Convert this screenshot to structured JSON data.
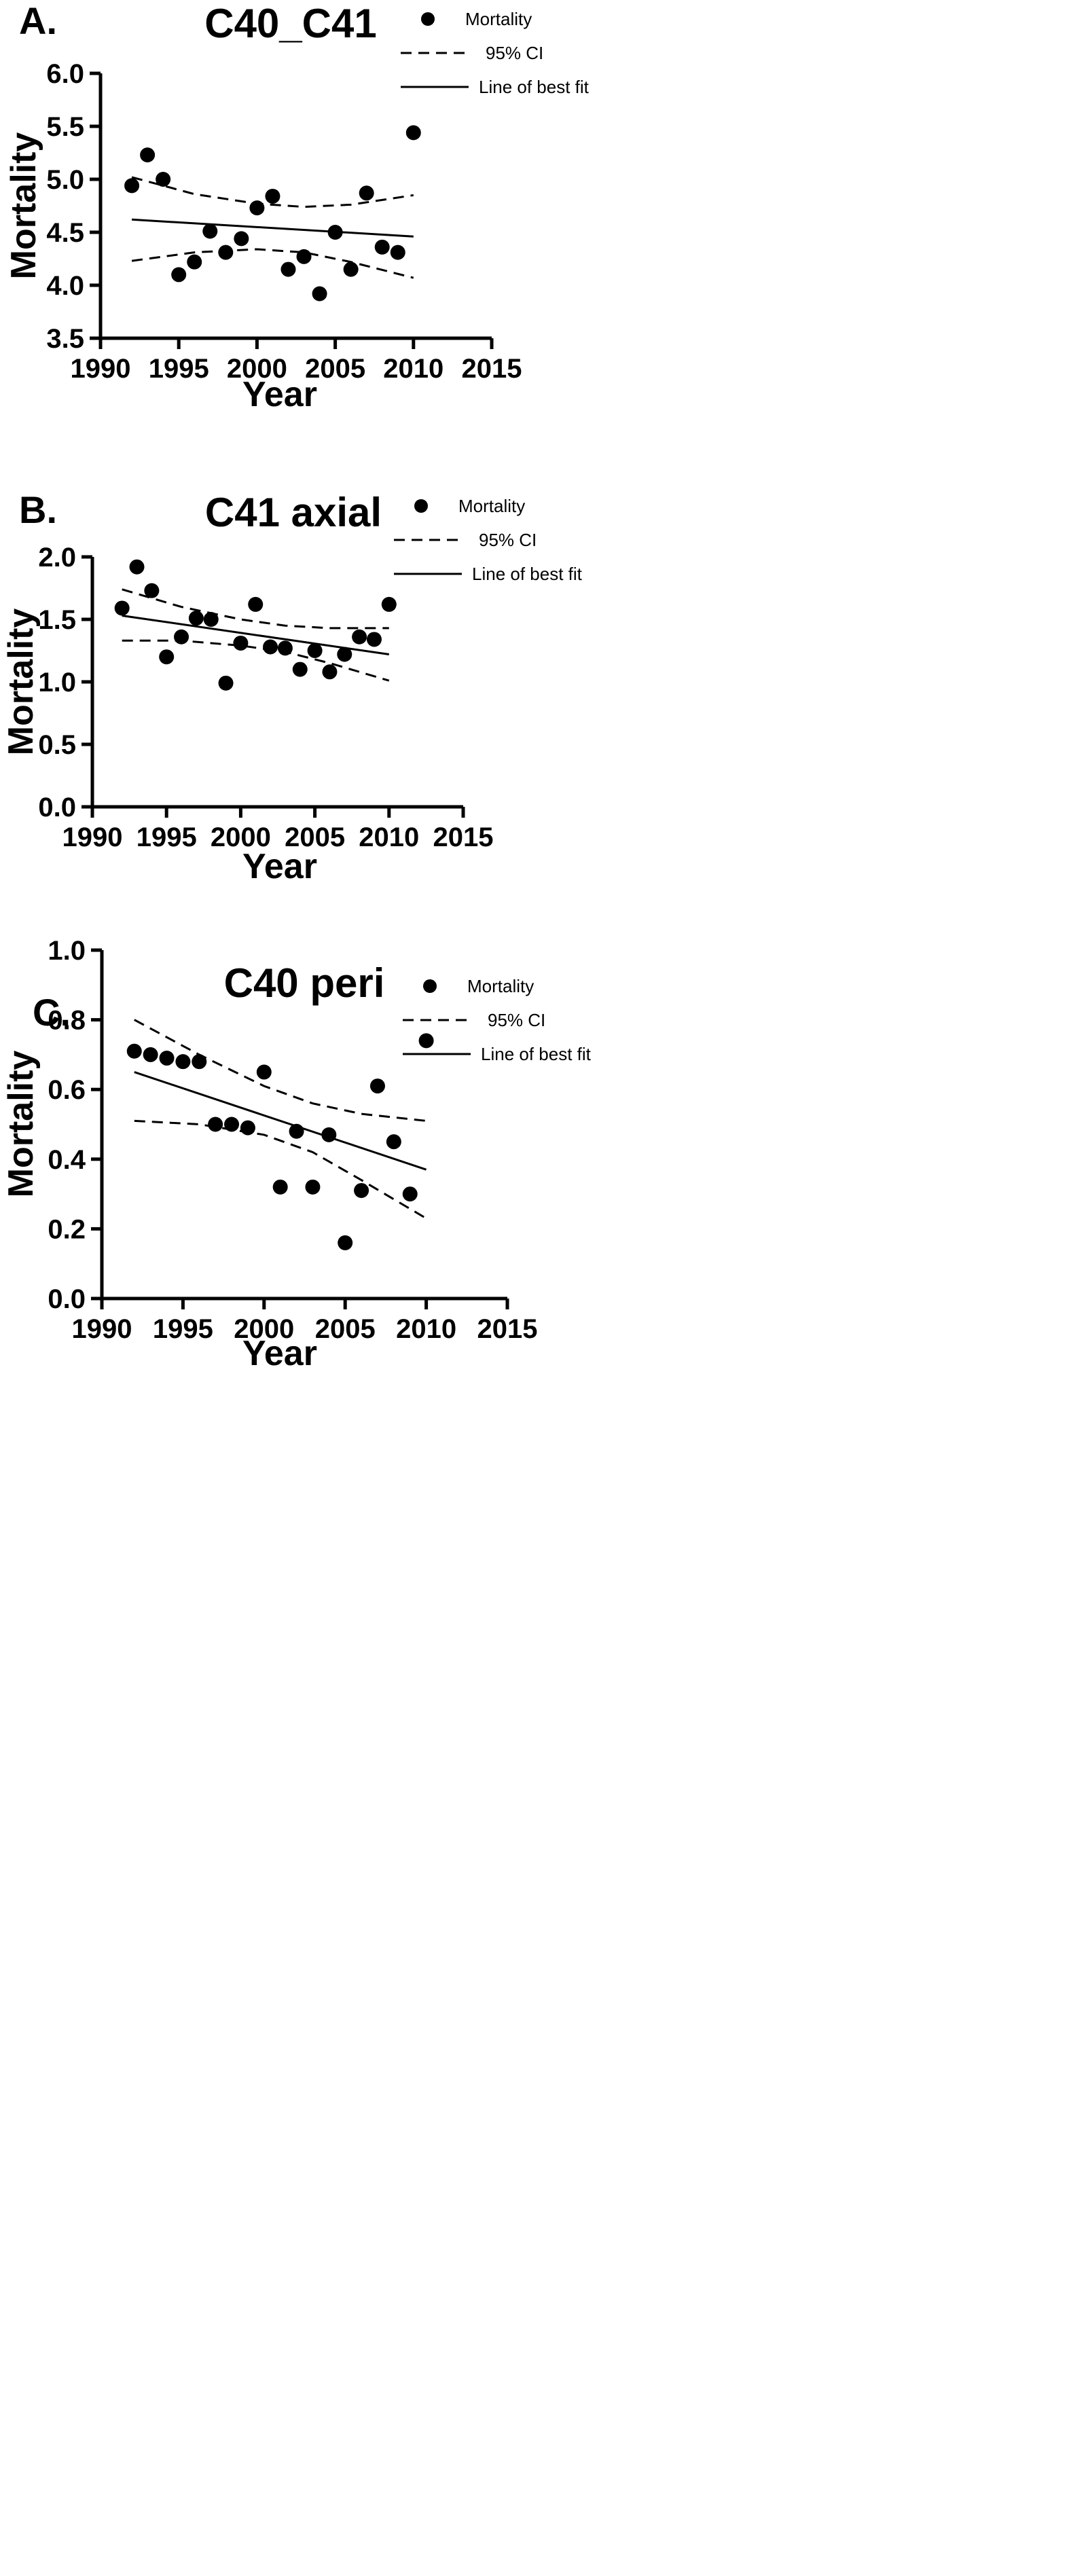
{
  "chart_data": [
    {
      "type": "scatter",
      "panel_label": "A.",
      "title": "C40_C41",
      "xlabel": "Year",
      "ylabel": "Mortality",
      "xlim": [
        1990,
        2015
      ],
      "ylim": [
        3.5,
        6.0
      ],
      "x_ticks": [
        1990,
        1995,
        2000,
        2005,
        2010,
        2015
      ],
      "y_ticks": [
        "3.5",
        "4.0",
        "4.5",
        "5.0",
        "5.5",
        "6.0"
      ],
      "legend": {
        "mortality": "Mortality",
        "ci": "95% CI",
        "fit": "Line of best fit",
        "position": "top-right"
      },
      "points": {
        "x": [
          1992,
          1993,
          1994,
          1995,
          1996,
          1997,
          1998,
          1999,
          2000,
          2001,
          2002,
          2003,
          2004,
          2005,
          2006,
          2007,
          2008,
          2009,
          2010
        ],
        "y": [
          4.94,
          5.23,
          5.0,
          4.1,
          4.22,
          4.51,
          4.31,
          4.44,
          4.73,
          4.84,
          4.15,
          4.27,
          3.92,
          4.5,
          4.15,
          4.87,
          4.36,
          4.31,
          5.44
        ]
      },
      "fit": {
        "x": [
          1992,
          2010
        ],
        "y": [
          4.62,
          4.46
        ]
      },
      "ci_upper": {
        "x": [
          1992,
          1996,
          2000,
          2003,
          2006,
          2010
        ],
        "y": [
          5.02,
          4.86,
          4.77,
          4.74,
          4.76,
          4.85
        ]
      },
      "ci_lower": {
        "x": [
          1992,
          1996,
          2000,
          2003,
          2006,
          2010
        ],
        "y": [
          4.23,
          4.31,
          4.34,
          4.31,
          4.22,
          4.07
        ]
      }
    },
    {
      "type": "scatter",
      "panel_label": "B.",
      "title": "C41 axial",
      "xlabel": "Year",
      "ylabel": "Mortality",
      "xlim": [
        1990,
        2015
      ],
      "ylim": [
        0.0,
        2.0
      ],
      "x_ticks": [
        1990,
        1995,
        2000,
        2005,
        2010,
        2015
      ],
      "y_ticks": [
        "0.0",
        "0.5",
        "1.0",
        "1.5",
        "2.0"
      ],
      "legend": {
        "mortality": "Mortality",
        "ci": "95% CI",
        "fit": "Line of best fit",
        "position": "top-right"
      },
      "points": {
        "x": [
          1992,
          1993,
          1994,
          1995,
          1996,
          1997,
          1998,
          1999,
          2000,
          2001,
          2002,
          2003,
          2004,
          2005,
          2006,
          2007,
          2008,
          2009,
          2010
        ],
        "y": [
          1.59,
          1.92,
          1.73,
          1.2,
          1.36,
          1.51,
          1.5,
          0.99,
          1.31,
          1.62,
          1.28,
          1.27,
          1.1,
          1.25,
          1.08,
          1.22,
          1.36,
          1.34,
          1.62
        ]
      },
      "fit": {
        "x": [
          1992,
          2010
        ],
        "y": [
          1.53,
          1.22
        ]
      },
      "ci_upper": {
        "x": [
          1992,
          1996,
          2000,
          2003,
          2006,
          2010
        ],
        "y": [
          1.74,
          1.6,
          1.5,
          1.45,
          1.43,
          1.43
        ]
      },
      "ci_lower": {
        "x": [
          1992,
          1996,
          2000,
          2003,
          2006,
          2010
        ],
        "y": [
          1.33,
          1.33,
          1.29,
          1.24,
          1.15,
          1.01
        ]
      }
    },
    {
      "type": "scatter",
      "panel_label": "C.",
      "title": "C40 peri",
      "xlabel": "Year",
      "ylabel": "Mortality",
      "xlim": [
        1990,
        2015
      ],
      "ylim": [
        0.0,
        1.0
      ],
      "x_ticks": [
        1990,
        1995,
        2000,
        2005,
        2010,
        2015
      ],
      "y_ticks": [
        "0.0",
        "0.2",
        "0.4",
        "0.6",
        "0.8",
        "1.0"
      ],
      "legend": {
        "mortality": "Mortality",
        "ci": "95% CI",
        "fit": "Line of best fit",
        "position": "top-right"
      },
      "points": {
        "x": [
          1992,
          1993,
          1994,
          1995,
          1996,
          1997,
          1998,
          1999,
          2000,
          2001,
          2002,
          2003,
          2004,
          2005,
          2006,
          2007,
          2008,
          2009,
          2010
        ],
        "y": [
          0.71,
          0.7,
          0.69,
          0.68,
          0.68,
          0.5,
          0.5,
          0.49,
          0.65,
          0.32,
          0.48,
          0.32,
          0.47,
          0.16,
          0.31,
          0.61,
          0.45,
          0.3,
          0.74
        ]
      },
      "fit": {
        "x": [
          1992,
          2010
        ],
        "y": [
          0.65,
          0.37
        ]
      },
      "ci_upper": {
        "x": [
          1992,
          1996,
          2000,
          2003,
          2006,
          2010
        ],
        "y": [
          0.8,
          0.7,
          0.61,
          0.56,
          0.53,
          0.51
        ]
      },
      "ci_lower": {
        "x": [
          1992,
          1996,
          2000,
          2003,
          2006,
          2010
        ],
        "y": [
          0.51,
          0.5,
          0.47,
          0.42,
          0.34,
          0.23
        ]
      }
    }
  ]
}
